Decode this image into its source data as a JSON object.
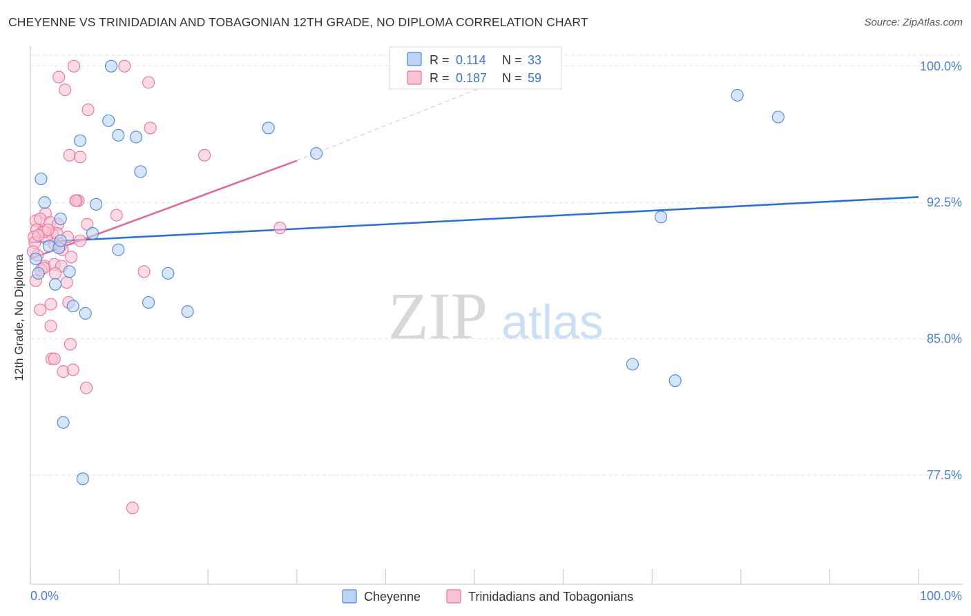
{
  "title": "CHEYENNE VS TRINIDADIAN AND TOBAGONIAN 12TH GRADE, NO DIPLOMA CORRELATION CHART",
  "source": "Source: ZipAtlas.com",
  "watermark": {
    "zip": "ZIP",
    "atlas": "atlas"
  },
  "colors": {
    "blue": "#4a86d4",
    "blue_fill": "#bcd4f3",
    "blue_line": "#2f6fcf",
    "pink": "#e9729a",
    "pink_fill": "#f7c3d3",
    "pink_line": "#e36a93",
    "axis_text": "#4a7fcf",
    "grid": "#e1e1e1"
  },
  "legend": {
    "r_label": "R =",
    "n_label": "N =",
    "items": [
      {
        "r": "0.114",
        "n": "33",
        "color": "blue"
      },
      {
        "r": "0.187",
        "n": "59",
        "color": "pink"
      }
    ]
  },
  "bottom_legend": [
    {
      "label": "Cheyenne",
      "color": "blue"
    },
    {
      "label": "Trinidadians and Tobagonians",
      "color": "pink"
    }
  ],
  "chart_data": {
    "type": "scatter",
    "title": "CHEYENNE VS TRINIDADIAN AND TOBAGONIAN 12TH GRADE, NO DIPLOMA CORRELATION CHART",
    "xlabel": "",
    "ylabel": "12th Grade, No Diploma",
    "xlim": [
      0,
      100
    ],
    "ylim": [
      71.5,
      100.6
    ],
    "x_tick_labels": [
      {
        "value": 0,
        "label": "0.0%"
      },
      {
        "value": 100,
        "label": "100.0%"
      }
    ],
    "y_ticks": [
      {
        "value": 100.0,
        "label": "100.0%"
      },
      {
        "value": 92.5,
        "label": "92.5%"
      },
      {
        "value": 85.0,
        "label": "85.0%"
      },
      {
        "value": 77.5,
        "label": "77.5%"
      }
    ],
    "series": [
      {
        "name": "Cheyenne",
        "color": "blue",
        "points": [
          [
            9.1,
            100.0
          ],
          [
            8.8,
            97.0
          ],
          [
            9.9,
            96.2
          ],
          [
            11.9,
            96.1
          ],
          [
            5.6,
            95.9
          ],
          [
            26.8,
            96.6
          ],
          [
            32.2,
            95.2
          ],
          [
            79.6,
            98.4
          ],
          [
            84.2,
            97.2
          ],
          [
            12.4,
            94.2
          ],
          [
            1.2,
            93.8
          ],
          [
            1.6,
            92.5
          ],
          [
            7.4,
            92.4
          ],
          [
            3.4,
            91.6
          ],
          [
            71.0,
            91.7
          ],
          [
            7.0,
            90.8
          ],
          [
            2.1,
            90.1
          ],
          [
            3.2,
            90.0
          ],
          [
            9.9,
            89.9
          ],
          [
            0.6,
            89.4
          ],
          [
            0.9,
            88.6
          ],
          [
            4.4,
            88.7
          ],
          [
            15.5,
            88.6
          ],
          [
            2.8,
            88.0
          ],
          [
            13.3,
            87.0
          ],
          [
            4.8,
            86.8
          ],
          [
            6.2,
            86.4
          ],
          [
            17.7,
            86.5
          ],
          [
            67.8,
            83.6
          ],
          [
            72.6,
            82.7
          ],
          [
            3.7,
            80.4
          ],
          [
            5.9,
            77.3
          ],
          [
            3.4,
            90.4
          ]
        ]
      },
      {
        "name": "Trinidadians and Tobagonians",
        "color": "pink",
        "points": [
          [
            4.9,
            100.0
          ],
          [
            10.6,
            100.0
          ],
          [
            3.2,
            99.4
          ],
          [
            13.3,
            99.1
          ],
          [
            3.9,
            98.7
          ],
          [
            6.5,
            97.6
          ],
          [
            13.5,
            96.6
          ],
          [
            4.4,
            95.1
          ],
          [
            5.6,
            95.0
          ],
          [
            19.6,
            95.1
          ],
          [
            5.2,
            92.6
          ],
          [
            5.4,
            92.6
          ],
          [
            9.7,
            91.8
          ],
          [
            1.7,
            91.9
          ],
          [
            0.6,
            91.5
          ],
          [
            1.1,
            91.6
          ],
          [
            2.2,
            91.4
          ],
          [
            3.1,
            91.3
          ],
          [
            6.4,
            91.3
          ],
          [
            0.7,
            91.0
          ],
          [
            1.4,
            90.9
          ],
          [
            2.5,
            90.7
          ],
          [
            3.0,
            90.8
          ],
          [
            0.4,
            90.6
          ],
          [
            1.8,
            90.5
          ],
          [
            4.2,
            90.6
          ],
          [
            5.6,
            90.4
          ],
          [
            0.5,
            90.3
          ],
          [
            2.7,
            90.2
          ],
          [
            3.4,
            90.1
          ],
          [
            28.1,
            91.1
          ],
          [
            0.8,
            89.6
          ],
          [
            4.6,
            89.5
          ],
          [
            1.6,
            89.0
          ],
          [
            2.7,
            89.1
          ],
          [
            3.5,
            89.0
          ],
          [
            1.2,
            88.8
          ],
          [
            1.5,
            88.9
          ],
          [
            2.8,
            88.6
          ],
          [
            12.8,
            88.7
          ],
          [
            0.6,
            88.2
          ],
          [
            4.1,
            88.1
          ],
          [
            2.3,
            86.9
          ],
          [
            4.3,
            87.0
          ],
          [
            1.1,
            86.6
          ],
          [
            2.3,
            85.7
          ],
          [
            4.5,
            84.7
          ],
          [
            2.4,
            83.9
          ],
          [
            2.7,
            83.9
          ],
          [
            3.7,
            83.2
          ],
          [
            4.8,
            83.3
          ],
          [
            6.3,
            82.3
          ],
          [
            11.5,
            75.7
          ],
          [
            1.6,
            90.9
          ],
          [
            0.9,
            90.7
          ],
          [
            2.0,
            91.0
          ],
          [
            3.6,
            89.9
          ],
          [
            5.1,
            92.6
          ],
          [
            0.3,
            89.8
          ]
        ]
      }
    ],
    "trend_lines": [
      {
        "series": "Cheyenne",
        "x": [
          0,
          100
        ],
        "y": [
          90.3,
          92.8
        ],
        "style": "solid"
      },
      {
        "series": "Trinidadians and Tobagonians",
        "x": [
          0,
          30
        ],
        "y": [
          89.4,
          94.8
        ],
        "style": "solid"
      },
      {
        "series": "Trinidadians and Tobagonians",
        "x": [
          30,
          60
        ],
        "y": [
          94.8,
          100.6
        ],
        "style": "dashed"
      }
    ]
  }
}
